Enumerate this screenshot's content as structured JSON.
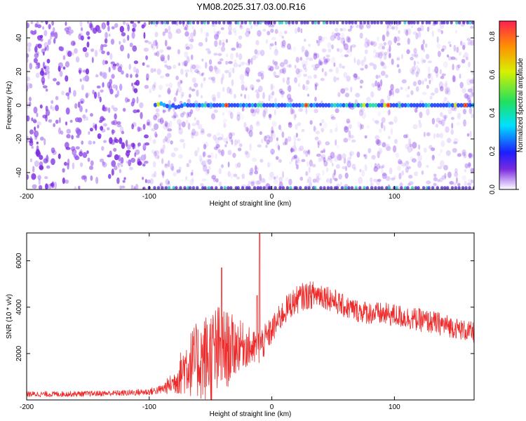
{
  "title": "YM08.2025.317.03.00.R16",
  "colors": {
    "axis": "#000000",
    "snr_line": "#ee2b2b",
    "spectrogram_bg_purple": "#7b2be0",
    "tonal_line": "#0aa8ff"
  },
  "chart_data": [
    {
      "id": "spectrogram",
      "type": "heatmap",
      "title": "",
      "xlabel": "Height of straight line (km)",
      "ylabel": "Frequency (Hz)",
      "xlim": [
        -200,
        165
      ],
      "ylim": [
        -50,
        50
      ],
      "x_ticks": [
        -200,
        -100,
        0,
        100
      ],
      "x_tick_labels": [
        "-200",
        "-100",
        "0",
        "100"
      ],
      "y_ticks": [
        -40,
        -20,
        0,
        20,
        40
      ],
      "y_tick_labels": [
        "-40",
        "-20",
        "0",
        "20",
        "40"
      ],
      "features": [
        {
          "name": "dense noise field",
          "x_range": [
            -200,
            -100
          ],
          "freq_range": [
            -50,
            50
          ],
          "amplitude": "low-moderate"
        },
        {
          "name": "tonal line at 0 Hz",
          "x_range": [
            -95,
            165
          ],
          "freq": 0,
          "amplitude_peak": 0.88
        },
        {
          "name": "top-edge band",
          "x_range": [
            -100,
            165
          ],
          "freq": 49,
          "amplitude": "moderate"
        },
        {
          "name": "bottom-edge band",
          "x_range": [
            -100,
            165
          ],
          "freq": -49,
          "amplitude": "moderate"
        }
      ],
      "colorbar": {
        "label": "Normalized spectral amplitude",
        "range": [
          0.0,
          0.88
        ],
        "ticks": [
          0.0,
          0.2,
          0.4,
          0.6,
          0.8
        ],
        "tick_labels": [
          "0.0",
          "0.2",
          "0.4",
          "0.6",
          "0.8"
        ]
      }
    },
    {
      "id": "snr",
      "type": "line",
      "title": "",
      "xlabel": "Height of straight line (km)",
      "ylabel": "SNR (10 * v/v)",
      "xlim": [
        -200,
        165
      ],
      "ylim": [
        0,
        7200
      ],
      "x_ticks": [
        -200,
        -100,
        0,
        100
      ],
      "x_tick_labels": [
        "-200",
        "-100",
        "0",
        "100"
      ],
      "y_ticks": [
        2000,
        4000,
        6000
      ],
      "y_tick_labels": [
        "2000",
        "4000",
        "6000"
      ],
      "series": [
        {
          "name": "SNR",
          "x": [
            -200,
            -180,
            -160,
            -140,
            -120,
            -100,
            -90,
            -85,
            -80,
            -75,
            -70,
            -65,
            -60,
            -55,
            -50,
            -45,
            -40,
            -35,
            -30,
            -25,
            -20,
            -15,
            -10,
            -5,
            0,
            5,
            10,
            15,
            20,
            25,
            30,
            35,
            40,
            45,
            50,
            55,
            60,
            70,
            80,
            90,
            100,
            110,
            120,
            130,
            140,
            150,
            160,
            165
          ],
          "values": [
            250,
            250,
            260,
            280,
            300,
            350,
            450,
            600,
            750,
            1100,
            1500,
            1600,
            1700,
            1800,
            1900,
            2000,
            2100,
            2200,
            2300,
            2400,
            2300,
            2200,
            2300,
            2600,
            3000,
            3400,
            3800,
            4100,
            4300,
            4450,
            4500,
            4550,
            4550,
            4450,
            4300,
            4150,
            4000,
            3850,
            3750,
            3700,
            3650,
            3550,
            3450,
            3350,
            3250,
            3100,
            2950,
            2900
          ],
          "noise_amplitude": [
            120,
            120,
            120,
            120,
            130,
            150,
            200,
            350,
            500,
            900,
            1300,
            1500,
            1700,
            1900,
            2100,
            2200,
            1900,
            1600,
            1300,
            1000,
            900,
            800,
            800,
            700,
            600,
            600,
            600,
            600,
            600,
            600,
            600,
            600,
            600,
            550,
            550,
            500,
            500,
            500,
            500,
            500,
            500,
            500,
            500,
            500,
            500,
            450,
            450,
            450
          ]
        }
      ],
      "spikes": [
        {
          "x": -41,
          "value": 5700
        },
        {
          "x": -10,
          "value": 7200
        },
        {
          "x": -12,
          "value": 4500
        }
      ]
    }
  ]
}
